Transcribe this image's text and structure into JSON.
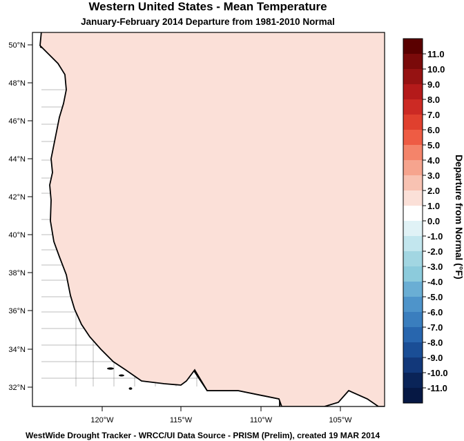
{
  "title": "Western United States - Mean Temperature",
  "subtitle": "January-February 2014  Departure from 1981-2010 Normal",
  "footer": "WestWide Drought Tracker - WRCC/UI  Data Source - PRISM (Prelim), created 19 MAR 2014",
  "lat_labels": [
    "50°N",
    "48°N",
    "46°N",
    "44°N",
    "42°N",
    "40°N",
    "38°N",
    "36°N",
    "34°N",
    "32°N"
  ],
  "lon_labels": [
    "120°W",
    "115°W",
    "110°W",
    "105°W"
  ],
  "colorbar": {
    "title": "Departure from Normal (°F)",
    "levels": [
      "11.0",
      "10.0",
      "9.0",
      "8.0",
      "7.0",
      "6.0",
      "5.0",
      "4.0",
      "3.0",
      "2.0",
      "1.0",
      "0.0",
      "-1.0",
      "-2.0",
      "-3.0",
      "-4.0",
      "-5.0",
      "-6.0",
      "-7.0",
      "-8.0",
      "-9.0",
      "-10.0",
      "-11.0"
    ],
    "colors": [
      "#5a0000",
      "#7a0a0a",
      "#961212",
      "#b41a1a",
      "#cc2a24",
      "#e0402e",
      "#ee5c44",
      "#f4846a",
      "#f6a48e",
      "#f8c2b2",
      "#fbe0d8",
      "#ffffff",
      "#e0f2f6",
      "#c2e6ee",
      "#a2d6e2",
      "#8ccbdc",
      "#6aaed4",
      "#4e94ca",
      "#3a7ebe",
      "#2866ae",
      "#1a4e96",
      "#12387a",
      "#0a2458",
      "#061844"
    ]
  },
  "colors": {
    "ocean": "#ffffff",
    "warm_strong": "#d63a2a",
    "warm_mid": "#ee6b52",
    "warm_light": "#f7ab97",
    "warm_pale": "#fbd8cc",
    "cold_light": "#c4e6ee",
    "cold_mid": "#a2d6e2",
    "cold_strong": "#5f9fd0",
    "cold_deep": "#2f6eb4"
  }
}
